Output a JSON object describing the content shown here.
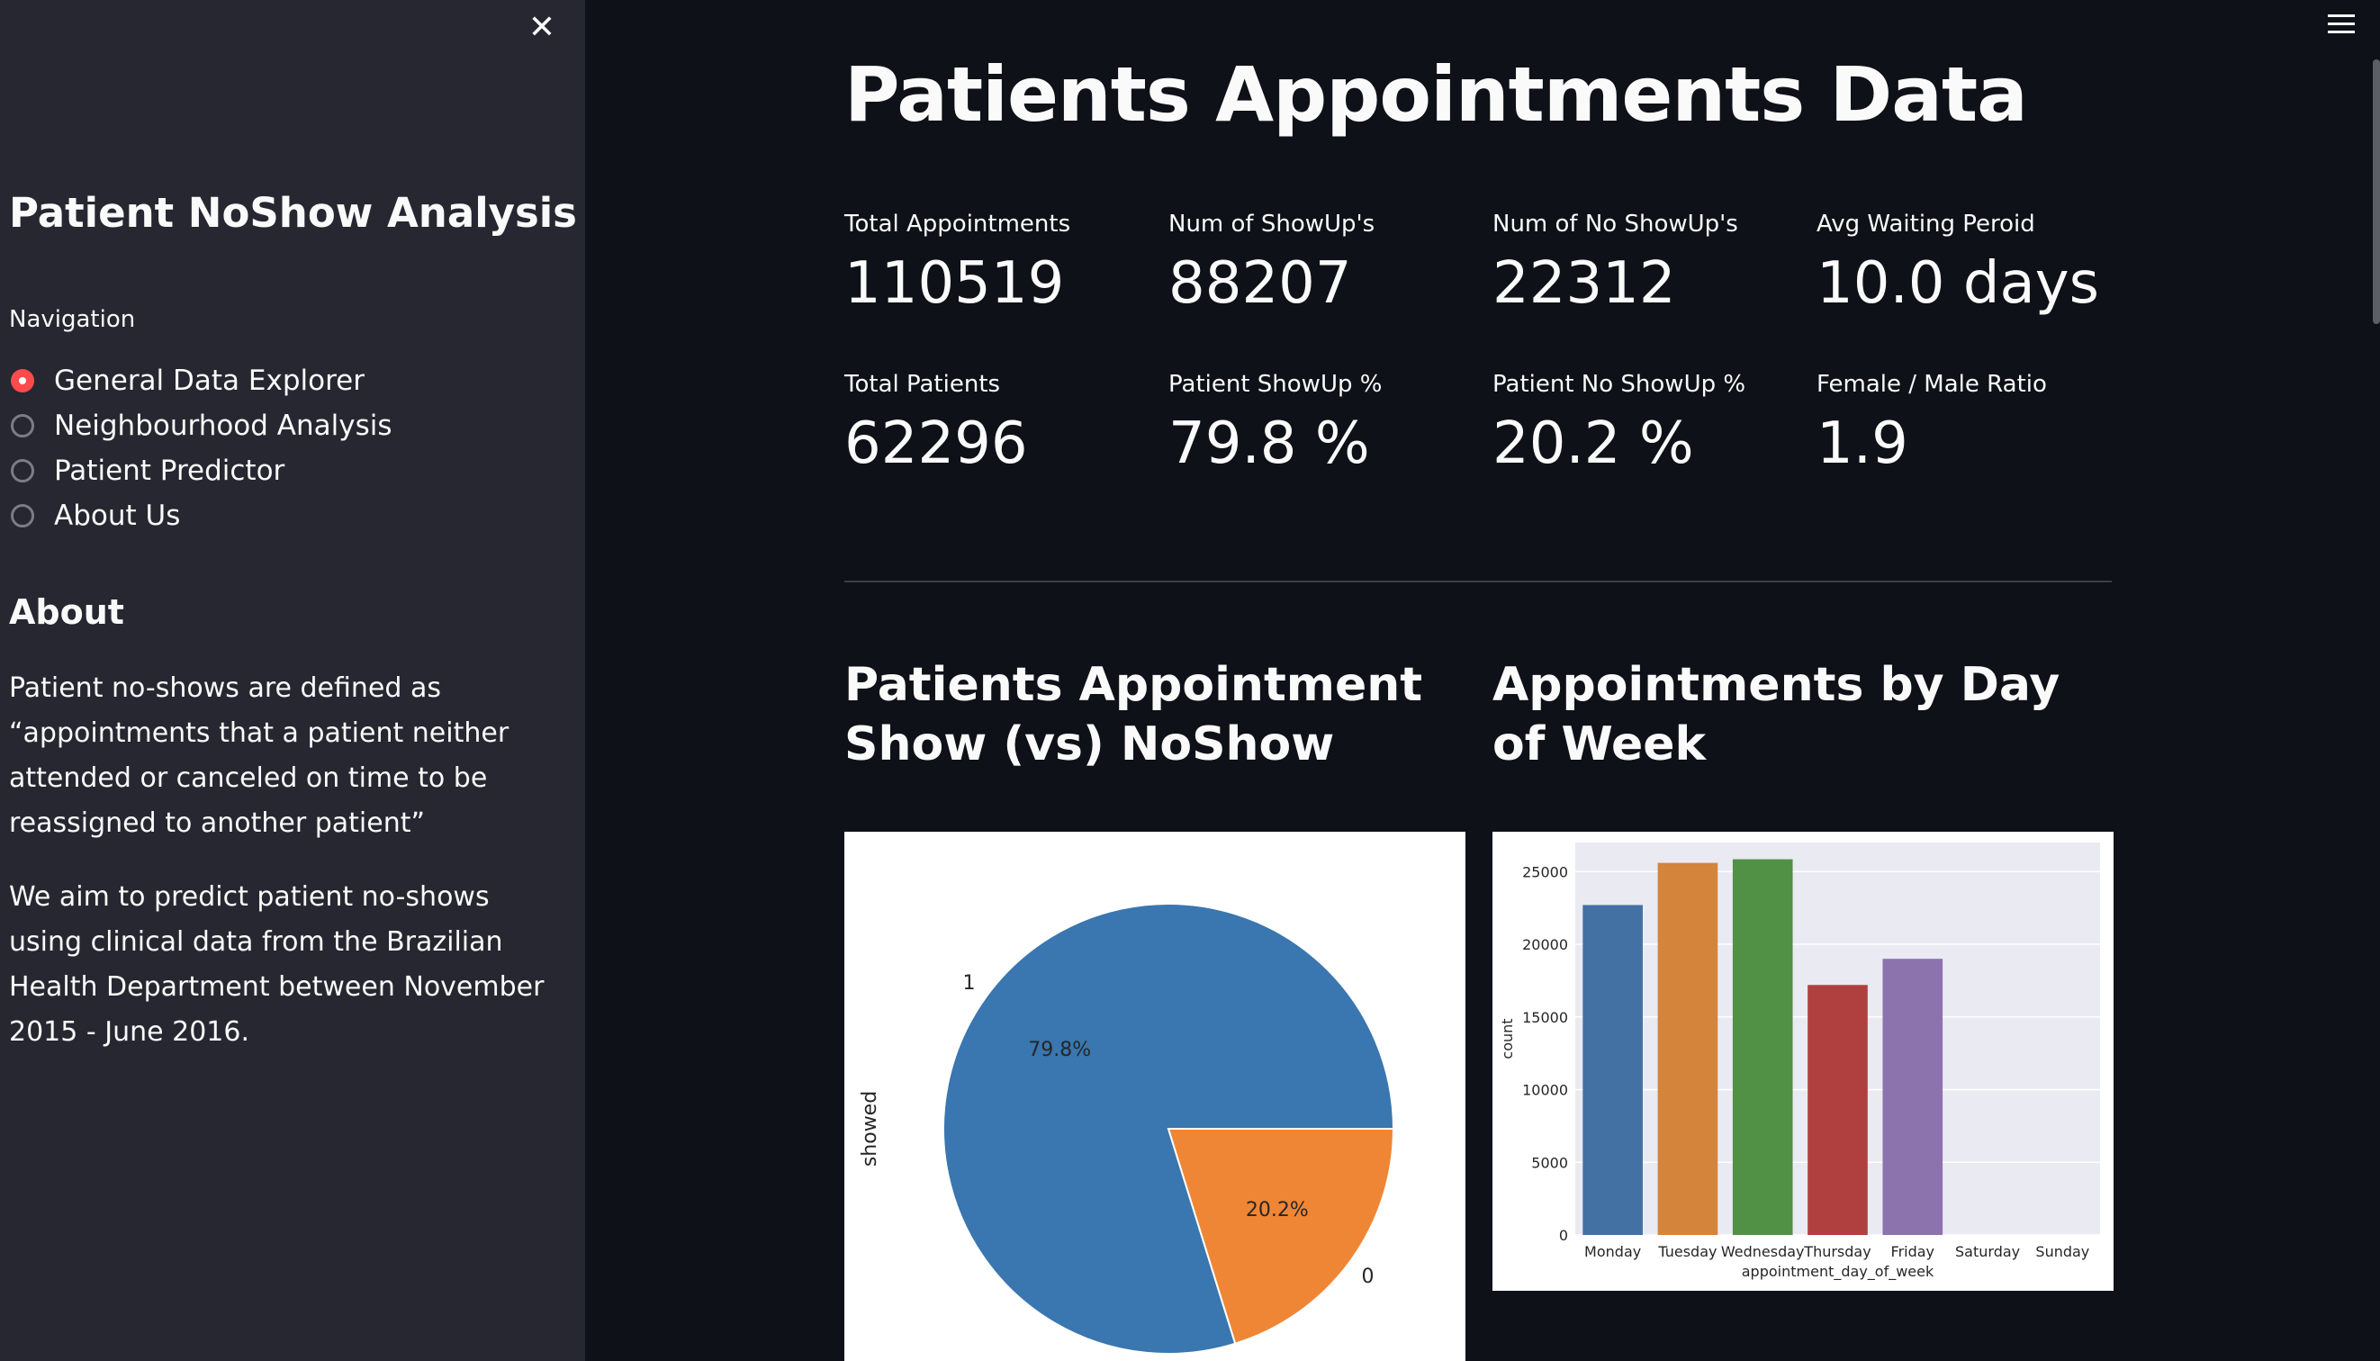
{
  "sidebar": {
    "title": "Patient NoShow Analysis",
    "navigation_label": "Navigation",
    "nav_items": [
      {
        "label": "General Data Explorer",
        "selected": true
      },
      {
        "label": "Neighbourhood Analysis",
        "selected": false
      },
      {
        "label": "Patient Predictor",
        "selected": false
      },
      {
        "label": "About Us",
        "selected": false
      }
    ],
    "about_heading": "About",
    "about_paragraphs": [
      "Patient no-shows are defined as “appointments that a patient neither attended or canceled on time to be reassigned to another patient”",
      "We aim to predict patient no-shows using clinical data from the Brazilian Health Department between November 2015 - June 2016."
    ],
    "close_icon": "close-icon"
  },
  "header": {
    "menu_icon": "hamburger-menu-icon"
  },
  "main": {
    "title": "Patients Appointments Data",
    "metrics": [
      {
        "label": "Total Appointments",
        "value": "110519"
      },
      {
        "label": "Num of ShowUp's",
        "value": "88207"
      },
      {
        "label": "Num of No ShowUp's",
        "value": "22312"
      },
      {
        "label": "Avg Waiting Peroid",
        "value": "10.0 days"
      },
      {
        "label": "Total Patients",
        "value": "62296"
      },
      {
        "label": "Patient ShowUp %",
        "value": "79.8 %"
      },
      {
        "label": "Patient No ShowUp %",
        "value": "20.2 %"
      },
      {
        "label": "Female / Male Ratio",
        "value": "1.9"
      }
    ],
    "section_titles": [
      "Patients Appointment Show (vs) NoShow",
      "Appointments by Day of Week"
    ]
  },
  "chart_data": [
    {
      "type": "pie",
      "ylabel": "showed",
      "labels": [
        "1",
        "0"
      ],
      "values": [
        79.8,
        20.2
      ],
      "pct_labels": [
        "79.8%",
        "20.2%"
      ],
      "colors": [
        "#3a76af",
        "#ef8636"
      ]
    },
    {
      "type": "bar",
      "xlabel": "appointment_day_of_week",
      "ylabel": "count",
      "categories": [
        "Monday",
        "Tuesday",
        "Wednesday",
        "Thursday",
        "Friday",
        "Saturday",
        "Sunday"
      ],
      "values": [
        22700,
        25600,
        25850,
        17200,
        19000,
        0,
        0
      ],
      "ylim": [
        0,
        27000
      ],
      "yticks": [
        "0",
        "5000",
        "10000",
        "15000",
        "20000",
        "25000"
      ],
      "grid": true,
      "colors": [
        "#4371a3",
        "#d5843b",
        "#509146",
        "#b0403f",
        "#8c73ad",
        "#8a6b56",
        "#d184bc"
      ]
    }
  ]
}
